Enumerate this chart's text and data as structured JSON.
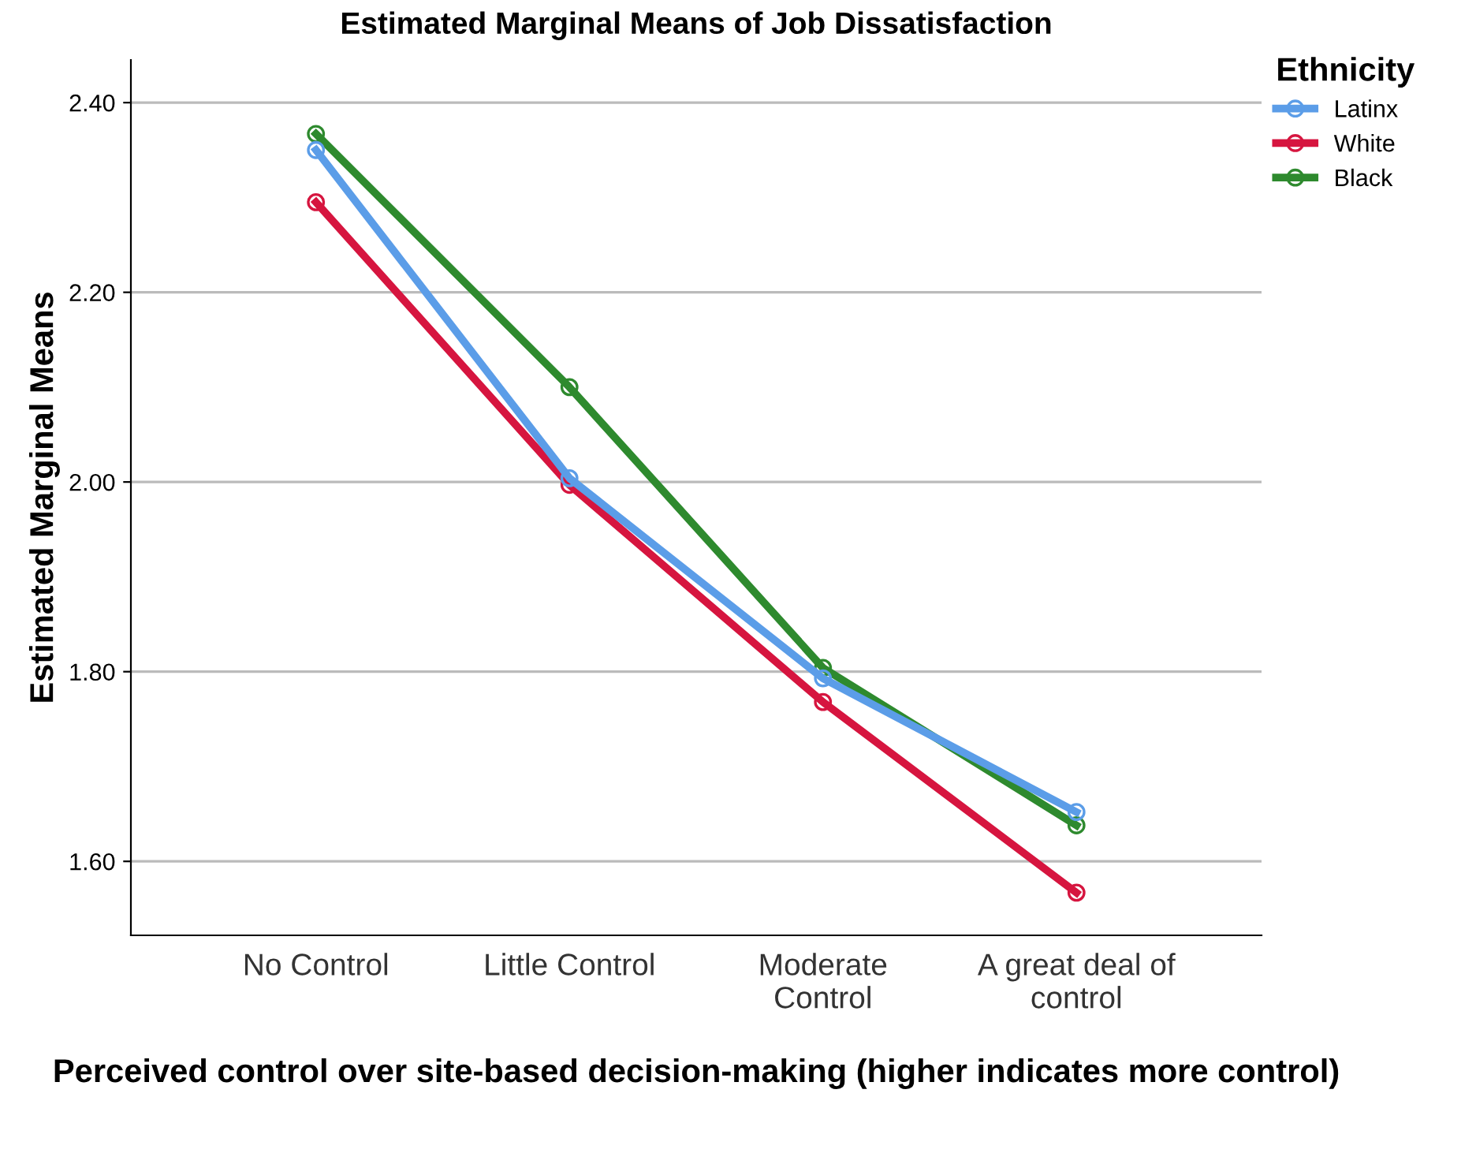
{
  "chart_data": {
    "type": "line",
    "title": "Estimated Marginal Means of Job Dissatisfaction",
    "xlabel": "Perceived control over site-based decision-making (higher indicates more control)",
    "ylabel": "Estimated Marginal Means",
    "legend_title": "Ethnicity",
    "categories": [
      "No Control",
      "Little Control",
      "Moderate\nControl",
      "A great deal of\ncontrol"
    ],
    "series": [
      {
        "name": "Latinx",
        "color": "#5b9de8",
        "values": [
          2.35,
          2.004,
          1.793,
          1.652
        ]
      },
      {
        "name": "White",
        "color": "#d6153f",
        "values": [
          2.295,
          1.997,
          1.768,
          1.567
        ]
      },
      {
        "name": "Black",
        "color": "#2e8a2e",
        "values": [
          2.367,
          2.1,
          1.804,
          1.638
        ]
      }
    ],
    "ylim": [
      1.522,
      2.445
    ],
    "yticks": [
      {
        "value": 1.6,
        "label": "1.60"
      },
      {
        "value": 1.8,
        "label": "1.80"
      },
      {
        "value": 2.0,
        "label": "2.00"
      },
      {
        "value": 2.2,
        "label": "2.20"
      },
      {
        "value": 2.4,
        "label": "2.40"
      }
    ],
    "grid": "y",
    "legend": "top right",
    "marker": "circle",
    "line_style": "solid"
  }
}
